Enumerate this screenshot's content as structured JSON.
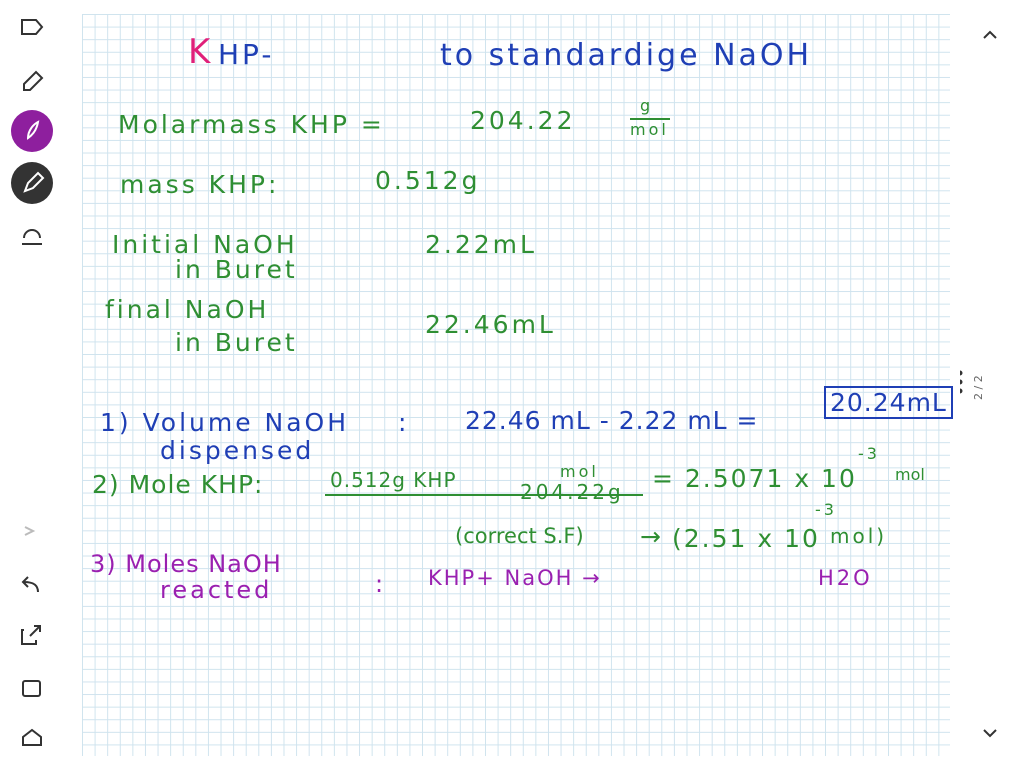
{
  "note": {
    "title": {
      "k": "K",
      "rest": "HP-",
      "main": "to standardige NaOH"
    },
    "molar": {
      "label": "Molarmass KHP =",
      "value": "204.22",
      "unit_num": "g",
      "unit_den": "mol"
    },
    "mass": {
      "label": "mass KHP:",
      "value": "0.512g"
    },
    "initial": {
      "label": "Initial NaOH",
      "label2": "in Buret",
      "value": "2.22mL"
    },
    "final": {
      "label": "final NaOH",
      "label2": "in Buret",
      "value": "22.46mL"
    },
    "step1": {
      "label": "1) Volume NaOH",
      "label2": "dispensed",
      "colon": ":",
      "expr": "22.46 mL - 2.22 mL =",
      "result": "20.24mL"
    },
    "step2": {
      "label": "2) Mole KHP:",
      "numerator": "0.512g KHP",
      "unit_num": "mol",
      "unit_den": "204.22g",
      "result": "= 2.5071 x 10",
      "exponent": "-3",
      "unit": "mol"
    },
    "correct": {
      "label": "(correct S.F)",
      "arrow": "→",
      "result": "(2.51 x 10",
      "exponent": "-3",
      "unit": "mol)"
    },
    "step3": {
      "label": "3) Moles NaOH",
      "label2": "reacted",
      "colon": ":",
      "expr": "KHP+ NaOH →",
      "product": "H2O"
    }
  },
  "page_indicator": "2 / 2"
}
